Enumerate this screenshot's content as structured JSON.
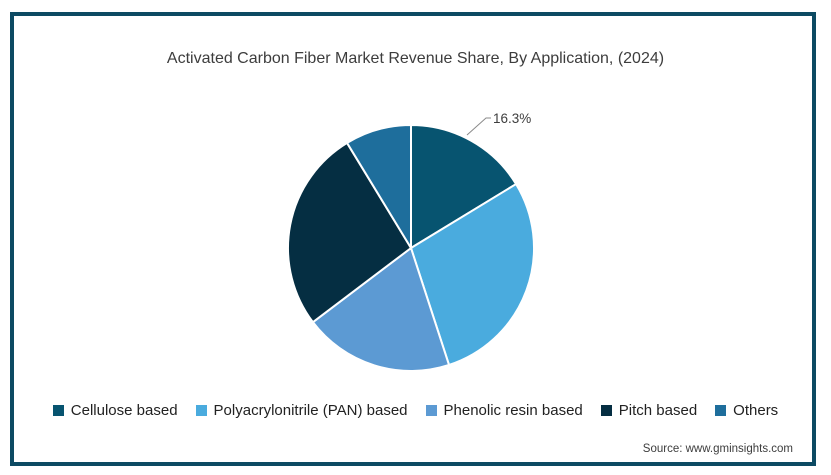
{
  "page": {
    "background": "#ffffff",
    "border_color": "#0d4a63"
  },
  "chart_data": {
    "type": "pie",
    "title": "Activated Carbon Fiber Market Revenue Share, By Application, (2024)",
    "units": "%",
    "start_angle_deg": 0,
    "direction": "clockwise",
    "legend_position": "bottom",
    "slice_separator_color": "#ffffff",
    "slices": [
      {
        "label": "Cellulose based",
        "value": 16.3,
        "color": "#075470",
        "data_label": "16.3%"
      },
      {
        "label": "Polyacrylonitrile (PAN) based",
        "value": 28.7,
        "color": "#4aabde",
        "data_label": ""
      },
      {
        "label": "Phenolic resin based",
        "value": 19.7,
        "color": "#5c9ad3",
        "data_label": ""
      },
      {
        "label": "Pitch based",
        "value": 26.6,
        "color": "#052e42",
        "data_label": ""
      },
      {
        "label": "Others",
        "value": 8.7,
        "color": "#1e6e9c",
        "data_label": ""
      }
    ]
  },
  "source": {
    "text": "Source: www.gminsights.com"
  }
}
